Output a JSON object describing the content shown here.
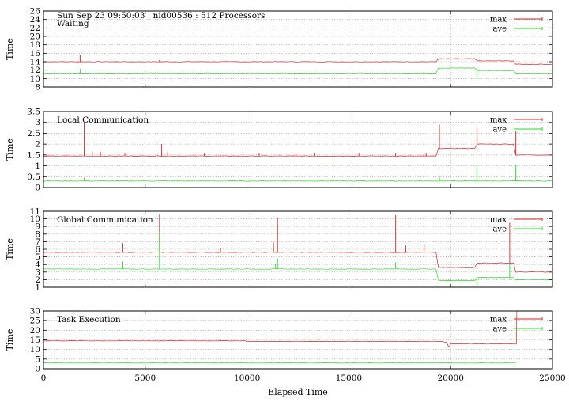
{
  "header": {
    "title": "Sun Sep 23 09:50:03 : nid00536 : 512 Processors"
  },
  "colors": {
    "max": "#dd2222",
    "ave": "#22dd22",
    "grid": "#9a9a9a",
    "axis": "#000000"
  },
  "xaxis": {
    "label": "Elapsed Time",
    "range": [
      0,
      25000
    ],
    "ticks": [
      0,
      5000,
      10000,
      15000,
      20000,
      25000
    ]
  },
  "chart_data": [
    {
      "type": "line",
      "title": "Waiting",
      "ylabel": "Time",
      "xlim": [
        0,
        25000
      ],
      "ylim": [
        8,
        26
      ],
      "yticks": [
        8,
        10,
        12,
        14,
        16,
        18,
        20,
        22,
        24,
        26
      ],
      "grid": true,
      "legend": "top-right",
      "series": [
        {
          "name": "max",
          "color_key": "max",
          "base": 14.0,
          "steps": [
            [
              0,
              14.0
            ],
            [
              19400,
              14.7
            ],
            [
              21300,
              14.2
            ],
            [
              23200,
              13.4
            ],
            [
              25000,
              13.4
            ]
          ],
          "spikes": [
            [
              1800,
              15.5
            ],
            [
              5700,
              14.4
            ]
          ]
        },
        {
          "name": "ave",
          "color_key": "ave",
          "base": 11.3,
          "steps": [
            [
              0,
              11.3
            ],
            [
              19400,
              12.5
            ],
            [
              21300,
              11.9
            ],
            [
              23200,
              11.3
            ],
            [
              25000,
              11.3
            ]
          ],
          "spikes": [
            [
              1800,
              12.3
            ],
            [
              21300,
              10.0
            ]
          ]
        }
      ]
    },
    {
      "type": "line",
      "title": "Local Communication",
      "ylabel": "Time",
      "xlim": [
        0,
        25000
      ],
      "ylim": [
        0,
        3.5
      ],
      "yticks": [
        0,
        0.5,
        1,
        1.5,
        2,
        2.5,
        3,
        3.5
      ],
      "grid": true,
      "legend": "top-right",
      "series": [
        {
          "name": "max",
          "color_key": "max",
          "base": 1.45,
          "steps": [
            [
              0,
              1.45
            ],
            [
              19400,
              1.8
            ],
            [
              21300,
              2.0
            ],
            [
              23200,
              1.5
            ],
            [
              25000,
              1.5
            ]
          ],
          "spikes": [
            [
              2000,
              3.0
            ],
            [
              2400,
              1.65
            ],
            [
              2800,
              1.65
            ],
            [
              4000,
              1.6
            ],
            [
              5800,
              2.0
            ],
            [
              6100,
              1.65
            ],
            [
              7900,
              1.6
            ],
            [
              9800,
              1.6
            ],
            [
              10600,
              1.6
            ],
            [
              12400,
              1.6
            ],
            [
              13300,
              1.6
            ],
            [
              15500,
              1.6
            ],
            [
              17300,
              1.6
            ],
            [
              18800,
              1.6
            ],
            [
              19450,
              2.9
            ],
            [
              21300,
              2.8
            ],
            [
              23200,
              2.6
            ]
          ]
        },
        {
          "name": "ave",
          "color_key": "ave",
          "base": 0.3,
          "steps": [
            [
              0,
              0.3
            ],
            [
              25000,
              0.3
            ]
          ],
          "spikes": [
            [
              2000,
              0.45
            ],
            [
              19450,
              0.55
            ],
            [
              21300,
              1.0
            ],
            [
              23200,
              1.05
            ]
          ]
        }
      ]
    },
    {
      "type": "line",
      "title": "Global Communication",
      "ylabel": "Time",
      "xlim": [
        0,
        25000
      ],
      "ylim": [
        1,
        11
      ],
      "yticks": [
        1,
        2,
        3,
        4,
        5,
        6,
        7,
        8,
        9,
        10,
        11
      ],
      "grid": true,
      "legend": "top-right",
      "series": [
        {
          "name": "max",
          "color_key": "max",
          "base": 5.6,
          "steps": [
            [
              0,
              5.6
            ],
            [
              19400,
              3.6
            ],
            [
              21300,
              4.2
            ],
            [
              23200,
              3.0
            ],
            [
              25000,
              3.0
            ]
          ],
          "spikes": [
            [
              3900,
              6.8
            ],
            [
              5700,
              10.6
            ],
            [
              8700,
              6.1
            ],
            [
              11300,
              6.9
            ],
            [
              11500,
              10.2
            ],
            [
              17300,
              10.5
            ],
            [
              17800,
              6.5
            ],
            [
              18700,
              6.7
            ],
            [
              22900,
              9.5
            ]
          ]
        },
        {
          "name": "ave",
          "color_key": "ave",
          "base": 3.4,
          "steps": [
            [
              0,
              3.4
            ],
            [
              19400,
              1.9
            ],
            [
              21300,
              2.3
            ],
            [
              23200,
              2.0
            ],
            [
              25000,
              2.0
            ]
          ],
          "spikes": [
            [
              3900,
              4.4
            ],
            [
              5700,
              8.3
            ],
            [
              11400,
              4.1
            ],
            [
              11500,
              4.8
            ],
            [
              17300,
              4.3
            ],
            [
              21300,
              1.0
            ],
            [
              22900,
              4.0
            ]
          ]
        }
      ]
    },
    {
      "type": "line",
      "title": "Task Execution",
      "ylabel": "Time",
      "xlim": [
        0,
        25000
      ],
      "ylim": [
        0,
        30
      ],
      "yticks": [
        0,
        5,
        10,
        15,
        20,
        25,
        30
      ],
      "grid": true,
      "legend": "top-right",
      "series": [
        {
          "name": "max",
          "color_key": "max",
          "base": 14.0,
          "steps": [
            [
              0,
              14.5
            ],
            [
              10000,
              14.2
            ],
            [
              19700,
              13.8
            ],
            [
              19900,
              11.5
            ],
            [
              20000,
              13.0
            ],
            [
              23200,
              13.0
            ],
            [
              23250,
              30.0
            ]
          ],
          "spikes": []
        },
        {
          "name": "ave",
          "color_key": "ave",
          "base": 3.0,
          "steps": [
            [
              0,
              3.0
            ],
            [
              23200,
              3.0
            ]
          ],
          "spikes": []
        }
      ]
    }
  ]
}
